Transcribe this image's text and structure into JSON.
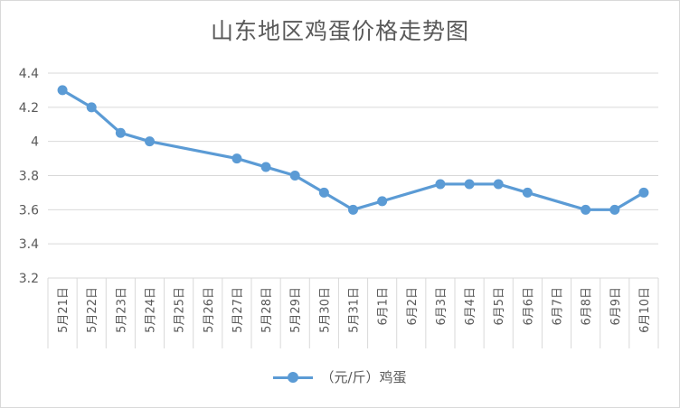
{
  "chart_data": {
    "type": "line",
    "title": "山东地区鸡蛋价格走势图",
    "categories": [
      "5月21日",
      "5月22日",
      "5月23日",
      "5月24日",
      "5月25日",
      "5月26日",
      "5月27日",
      "5月28日",
      "5月29日",
      "5月30日",
      "5月31日",
      "6月1日",
      "6月2日",
      "6月3日",
      "6月4日",
      "6月5日",
      "6月6日",
      "6月7日",
      "6月8日",
      "6月9日",
      "6月10日"
    ],
    "series": [
      {
        "name": "（元/斤）鸡蛋",
        "values": [
          4.3,
          4.2,
          4.05,
          4.0,
          null,
          null,
          3.9,
          3.85,
          3.8,
          3.7,
          3.6,
          3.65,
          null,
          3.75,
          3.75,
          3.75,
          3.7,
          null,
          3.6,
          3.6,
          3.7
        ]
      }
    ],
    "yticks": [
      "3.2",
      "3.4",
      "3.6",
      "3.8",
      "4",
      "4.2",
      "4.4"
    ],
    "ylim": [
      3.2,
      4.4
    ],
    "grid": true,
    "legend": "bottom",
    "colors": {
      "series": "#5b9bd5",
      "grid": "#d9d9d9",
      "text": "#595959"
    }
  }
}
